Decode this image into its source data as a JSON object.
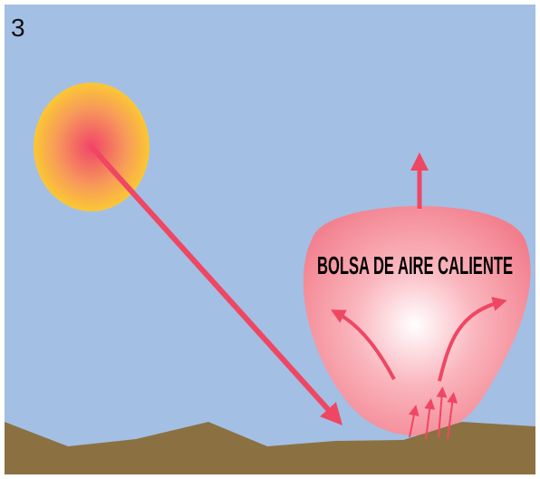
{
  "panel_number": "3",
  "bubble": {
    "label": "BOLSA DE AIRE CALIENTE"
  }
}
